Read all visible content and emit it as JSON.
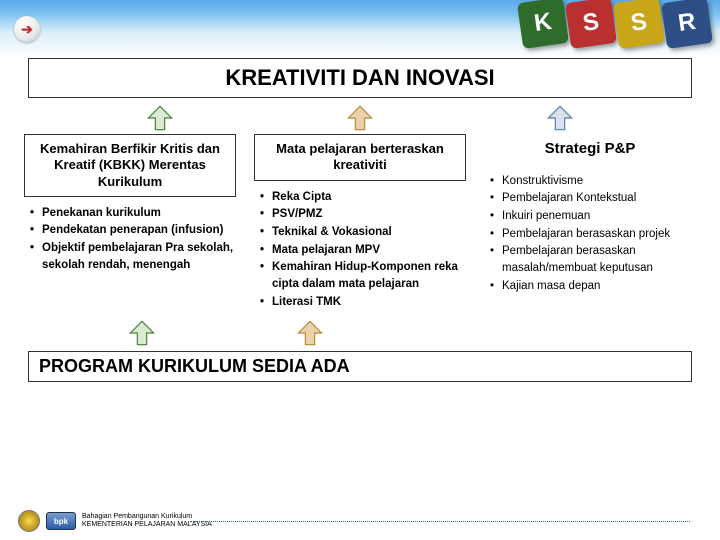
{
  "title": "KREATIVITI DAN INOVASI",
  "bottomTitle": "PROGRAM KURIKULUM SEDIA ADA",
  "blocks": [
    {
      "letter": "K",
      "bg": "#2f6b2b"
    },
    {
      "letter": "S",
      "bg": "#b93030"
    },
    {
      "letter": "S",
      "bg": "#c9a518"
    },
    {
      "letter": "R",
      "bg": "#2d4f86"
    }
  ],
  "arrowColors": {
    "col1": {
      "fill": "#d9ead3",
      "stroke": "#4a7c3a"
    },
    "col2": {
      "fill": "#ead1a8",
      "stroke": "#b28b3a"
    },
    "col3": {
      "fill": "#d6e2f0",
      "stroke": "#5b7aa8"
    }
  },
  "col1": {
    "head": "Kemahiran Berfikir Kritis dan Kreatif (KBKK) Merentas Kurikulum",
    "items": [
      "Penekanan kurikulum",
      "Pendekatan penerapan (infusion)",
      "Objektif pembelajaran Pra sekolah, sekolah rendah, menengah"
    ]
  },
  "col2": {
    "head": "Mata pelajaran berteraskan kreativiti",
    "items": [
      "Reka Cipta",
      "PSV/PMZ",
      "Teknikal & Vokasional",
      "Mata pelajaran MPV",
      "Kemahiran Hidup-Komponen reka cipta dalam mata pelajaran",
      "Literasi TMK"
    ]
  },
  "col3": {
    "head": "Strategi P&P",
    "items": [
      "Konstruktivisme",
      "Pembelajaran Kontekstual",
      "Inkuiri penemuan",
      "Pembelajaran berasaskan projek",
      "Pembelajaran berasaskan masalah/membuat keputusan",
      "Kajian masa depan"
    ]
  },
  "footer": {
    "bpk": "bpk",
    "line1": "Bahagian Pembangunan Kurikulum",
    "line2": "KEMENTERIAN PELAJARAN MALAYSIA"
  }
}
